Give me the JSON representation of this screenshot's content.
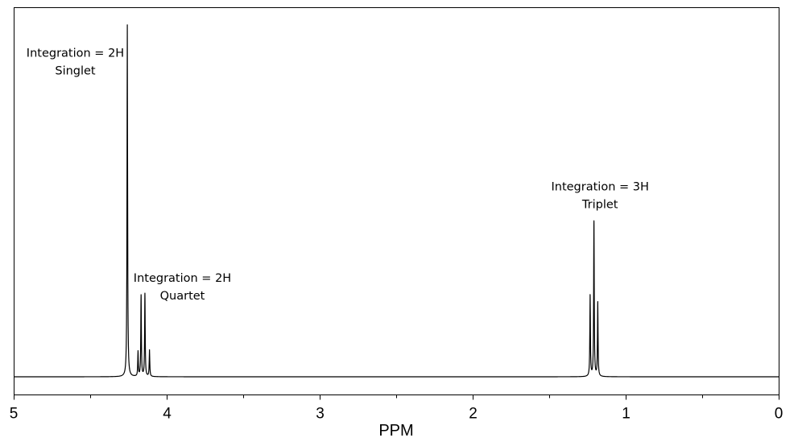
{
  "chart_data": {
    "type": "line",
    "title": "",
    "xlabel": "PPM",
    "ylabel": "",
    "xlim": [
      5,
      0
    ],
    "x_reversed": true,
    "ylim": [
      0,
      1
    ],
    "xticks": [
      5,
      4,
      3,
      2,
      1,
      0
    ],
    "xtick_labels": [
      "5",
      "4",
      "3",
      "2",
      "1",
      "0"
    ],
    "minor_xticks": [
      4.5,
      3.5,
      2.5,
      1.5,
      0.5
    ],
    "grid": false,
    "legend": "none",
    "line_color": "#000000",
    "baseline": 0,
    "peaks": [
      {
        "x": 4.26,
        "y": 1.0
      },
      {
        "x": 4.19,
        "y": 0.07
      },
      {
        "x": 4.17,
        "y": 0.23
      },
      {
        "x": 4.145,
        "y": 0.235
      },
      {
        "x": 4.115,
        "y": 0.075
      },
      {
        "x": 1.235,
        "y": 0.23
      },
      {
        "x": 1.21,
        "y": 0.44
      },
      {
        "x": 1.185,
        "y": 0.21
      }
    ],
    "annotations": [
      {
        "lines": [
          "Integration = 2H",
          "Singlet"
        ],
        "x": 4.6,
        "y": 0.91
      },
      {
        "lines": [
          "Integration = 2H",
          "Quartet"
        ],
        "x": 3.9,
        "y": 0.27
      },
      {
        "lines": [
          "Integration = 3H",
          "Triplet"
        ],
        "x": 1.17,
        "y": 0.53
      }
    ]
  }
}
